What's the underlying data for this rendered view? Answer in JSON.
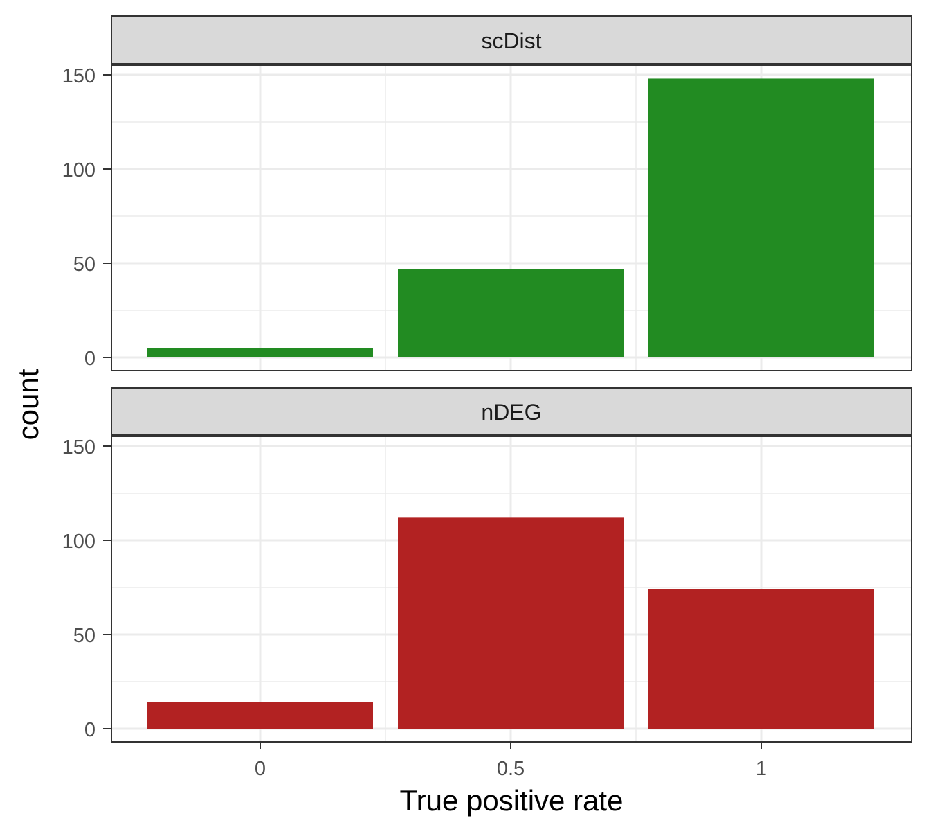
{
  "chart_data": {
    "type": "bar",
    "x": [
      0,
      0.5,
      1
    ],
    "xlabel": "True positive rate",
    "ylabel": "count",
    "xtick_labels": [
      "0",
      "0.5",
      "1"
    ],
    "ytick_labels": [
      "0",
      "50",
      "100",
      "150"
    ],
    "ylim": [
      0,
      150
    ],
    "grid": true,
    "facets": [
      {
        "label": "scDist",
        "color": "#228B22",
        "values": [
          5,
          47,
          148
        ]
      },
      {
        "label": "nDEG",
        "color": "#B22222",
        "values": [
          14,
          112,
          74
        ]
      }
    ]
  }
}
